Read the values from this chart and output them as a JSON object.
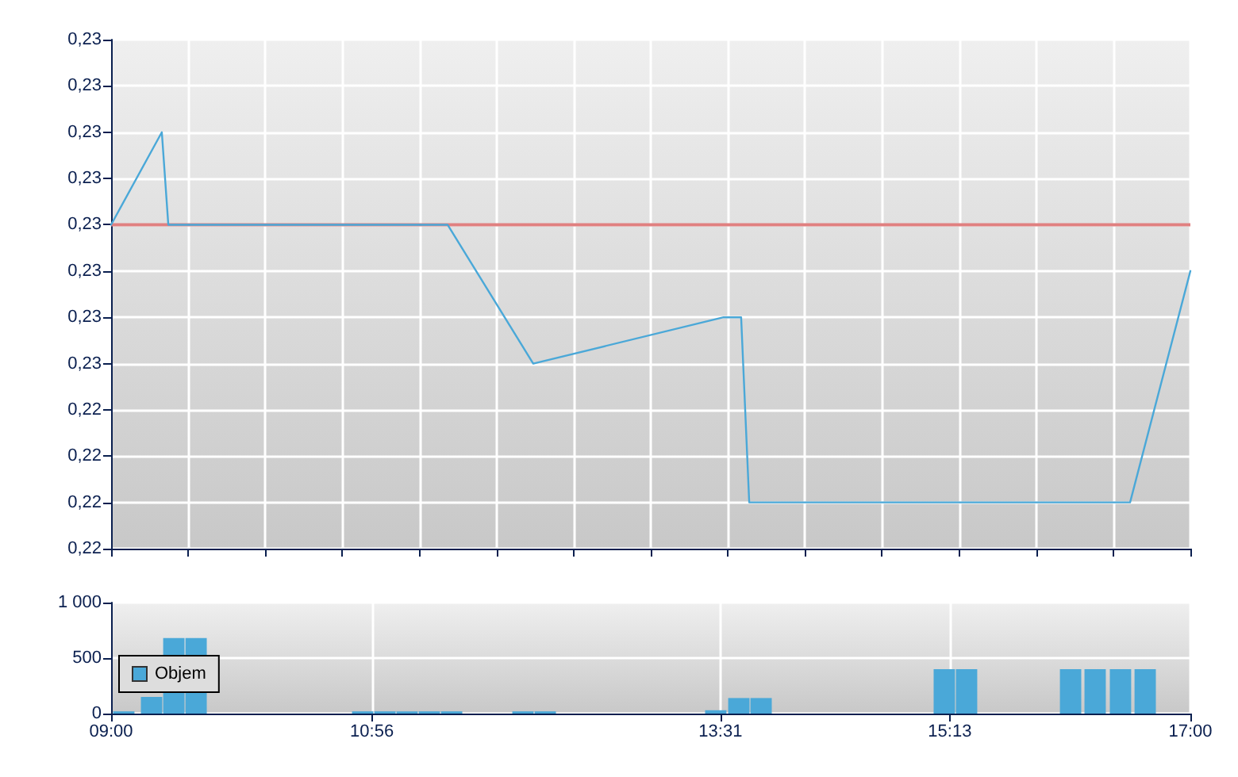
{
  "chart_data": [
    {
      "type": "line",
      "x": [
        9.0,
        9.376,
        9.424,
        11.494,
        12.129,
        13.54,
        13.67,
        13.73,
        16.553,
        17.0
      ],
      "series": [
        {
          "color": "#4aa8d8",
          "values": [
            0.2256,
            0.226,
            0.2256,
            0.2256,
            0.225,
            0.2252,
            0.2252,
            0.2244,
            0.2244,
            0.2254
          ]
        }
      ],
      "xlim": [
        9,
        17
      ],
      "xticks": [
        {
          "value": 9,
          "label": null
        },
        {
          "value": 9.571,
          "label": null
        },
        {
          "value": 10.143,
          "label": null
        },
        {
          "value": 10.714,
          "label": null
        },
        {
          "value": 11.286,
          "label": null
        },
        {
          "value": 11.857,
          "label": null
        },
        {
          "value": 12.429,
          "label": null
        },
        {
          "value": 13,
          "label": null
        },
        {
          "value": 13.571,
          "label": null
        },
        {
          "value": 14.143,
          "label": null
        },
        {
          "value": 14.714,
          "label": null
        },
        {
          "value": 15.286,
          "label": null
        },
        {
          "value": 15.857,
          "label": null
        },
        {
          "value": 16.429,
          "label": null
        },
        {
          "value": 17,
          "label": null
        }
      ],
      "ylim": [
        0.2242,
        0.2264
      ],
      "yticks": [
        {
          "value": 0.2242,
          "label": "0,22"
        },
        {
          "value": 0.2244,
          "label": "0,22"
        },
        {
          "value": 0.2246,
          "label": "0,22"
        },
        {
          "value": 0.2248,
          "label": "0,22"
        },
        {
          "value": 0.225,
          "label": "0,23"
        },
        {
          "value": 0.2252,
          "label": "0,23"
        },
        {
          "value": 0.2254,
          "label": "0,23"
        },
        {
          "value": 0.2256,
          "label": "0,23"
        },
        {
          "value": 0.2258,
          "label": "0,23"
        },
        {
          "value": 0.226,
          "label": "0,23"
        },
        {
          "value": 0.2262,
          "label": "0,23"
        },
        {
          "value": 0.2264,
          "label": "0,23"
        }
      ],
      "ref_lines": [
        {
          "axis": "y",
          "value": 0.2256,
          "color": "#e08080"
        }
      ],
      "tick_labels": "y",
      "grid": true,
      "marker": "none",
      "line_style": "solid",
      "legend": false
    },
    {
      "type": "bar",
      "x": [
        9.094,
        9.3,
        9.465,
        9.63,
        10.865,
        11.03,
        11.194,
        11.359,
        11.524,
        12.053,
        12.218,
        13.482,
        13.653,
        13.818,
        15.176,
        15.341,
        16.112,
        16.294,
        16.482,
        16.665
      ],
      "series": [
        {
          "name": "Objem",
          "color": "#4aa8d8",
          "values": [
            20,
            150,
            680,
            680,
            20,
            20,
            20,
            20,
            20,
            20,
            20,
            30,
            140,
            140,
            400,
            400,
            400,
            400,
            400,
            400
          ]
        }
      ],
      "xlim": [
        9,
        17
      ],
      "xticks": [
        {
          "value": 9,
          "label": "09:00"
        },
        {
          "value": 10.933,
          "label": "10:56"
        },
        {
          "value": 13.517,
          "label": "13:31"
        },
        {
          "value": 15.217,
          "label": "15:13"
        },
        {
          "value": 17,
          "label": "17:00"
        }
      ],
      "ylim": [
        0,
        1000
      ],
      "yticks": [
        0,
        500,
        {
          "value": 1000,
          "label": "1 000"
        }
      ],
      "grid": true,
      "legend": "left"
    }
  ]
}
